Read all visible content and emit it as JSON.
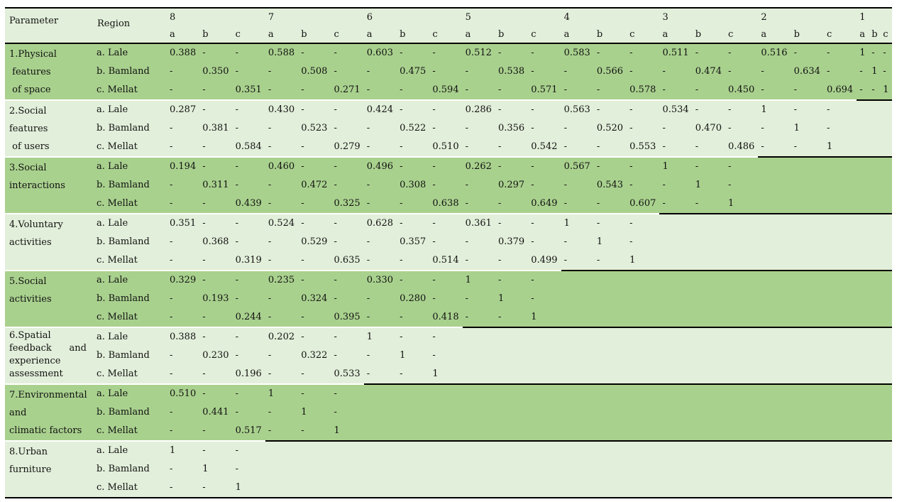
{
  "table": {
    "header": {
      "parameter_label": "Parameter",
      "region_label": "Region",
      "column_groups": [
        {
          "number": "8",
          "sub_columns": [
            "a",
            "b",
            "c"
          ]
        },
        {
          "number": "7",
          "sub_columns": [
            "a",
            "b",
            "c"
          ]
        },
        {
          "number": "6",
          "sub_columns": [
            "a",
            "b",
            "c"
          ]
        },
        {
          "number": "5",
          "sub_columns": [
            "a",
            "b",
            "c"
          ]
        },
        {
          "number": "4",
          "sub_columns": [
            "a",
            "b",
            "c"
          ]
        },
        {
          "number": "3",
          "sub_columns": [
            "a",
            "b",
            "c"
          ]
        },
        {
          "number": "2",
          "sub_columns": [
            "a",
            "b",
            "c"
          ]
        },
        {
          "number": "1",
          "sub_columns": [
            "a",
            "b",
            "c"
          ]
        }
      ]
    },
    "colors": {
      "band_dark": "#a9d18e",
      "band_light": "#e2efda",
      "header_bg": "#e2efda",
      "empty_region": "#000000",
      "rule": "#000000",
      "group_separator": "#ffffff"
    },
    "parameter_groups": [
      {
        "parameter": "1.Physical\n features\n of space",
        "rows": [
          {
            "region": "a. Lale",
            "values": [
              "0.388",
              "-",
              "-",
              "0.588",
              "-",
              "-",
              "0.603",
              "-",
              "-",
              "0.512",
              "-",
              "-",
              "0.583",
              "-",
              "-",
              "0.511",
              "-",
              "-",
              "0.516",
              "-",
              "-",
              "1",
              "-",
              "-"
            ]
          },
          {
            "region": "b. Bamland",
            "values": [
              "-",
              "0.350",
              "-",
              "-",
              "0.508",
              "-",
              "-",
              "0.475",
              "-",
              "-",
              "0.538",
              "-",
              "-",
              "0.566",
              "-",
              "-",
              "0.474",
              "-",
              "-",
              "0.634",
              "-",
              "-",
              "1",
              "-"
            ]
          },
          {
            "region": "c. Mellat",
            "values": [
              "-",
              "-",
              "0.351",
              "-",
              "-",
              "0.271",
              "-",
              "-",
              "0.594",
              "-",
              "-",
              "0.571",
              "-",
              "-",
              "0.578",
              "-",
              "-",
              "0.450",
              "-",
              "-",
              "0.694",
              "-",
              "-",
              "1"
            ]
          }
        ]
      },
      {
        "parameter": "2.Social\nfeatures\n of users",
        "rows": [
          {
            "region": "a. Lale",
            "values": [
              "0.287",
              "-",
              "-",
              "0.430",
              "-",
              "-",
              "0.424",
              "-",
              "-",
              "0.286",
              "-",
              "-",
              "0.563",
              "-",
              "-",
              "0.534",
              "-",
              "-",
              "1",
              "-",
              "-"
            ]
          },
          {
            "region": "b. Bamland",
            "values": [
              "-",
              "0.381",
              "-",
              "-",
              "0.523",
              "-",
              "-",
              "0.522",
              "-",
              "-",
              "0.356",
              "-",
              "-",
              "0.520",
              "-",
              "-",
              "0.470",
              "-",
              "-",
              "1",
              "-"
            ]
          },
          {
            "region": "c. Mellat",
            "values": [
              "-",
              "-",
              "0.584",
              "-",
              "-",
              "0.279",
              "-",
              "-",
              "0.510",
              "-",
              "-",
              "0.542",
              "-",
              "-",
              "0.553",
              "-",
              "-",
              "0.486",
              "-",
              "-",
              "1"
            ]
          }
        ]
      },
      {
        "parameter": "3.Social\ninteractions",
        "rows": [
          {
            "region": "a. Lale",
            "values": [
              "0.194",
              "-",
              "-",
              "0.460",
              "-",
              "-",
              "0.496",
              "-",
              "-",
              "0.262",
              "-",
              "-",
              "0.567",
              "-",
              "-",
              "1",
              "-",
              "-"
            ]
          },
          {
            "region": "b. Bamland",
            "values": [
              "-",
              "0.311",
              "-",
              "-",
              "0.472",
              "-",
              "-",
              "0.308",
              "-",
              "-",
              "0.297",
              "-",
              "-",
              "0.543",
              "-",
              "-",
              "1",
              "-"
            ]
          },
          {
            "region": "c. Mellat",
            "values": [
              "-",
              "-",
              "0.439",
              "-",
              "-",
              "0.325",
              "-",
              "-",
              "0.638",
              "-",
              "-",
              "0.649",
              "-",
              "-",
              "0.607",
              "-",
              "-",
              "1"
            ]
          }
        ]
      },
      {
        "parameter": "4.Voluntary\nactivities",
        "rows": [
          {
            "region": "a. Lale",
            "values": [
              "0.351",
              "-",
              "-",
              "0.524",
              "-",
              "-",
              "0.628",
              "-",
              "-",
              "0.361",
              "-",
              "-",
              "1",
              "-",
              "-"
            ]
          },
          {
            "region": "b. Bamland",
            "values": [
              "-",
              "0.368",
              "-",
              "-",
              "0.529",
              "-",
              "-",
              "0.357",
              "-",
              "-",
              "0.379",
              "-",
              "-",
              "1",
              "-"
            ]
          },
          {
            "region": "c. Mellat",
            "values": [
              "-",
              "-",
              "0.319",
              "-",
              "-",
              "0.635",
              "-",
              "-",
              "0.514",
              "-",
              "-",
              "0.499",
              "-",
              "-",
              "1"
            ]
          }
        ]
      },
      {
        "parameter": "5.Social\nactivities",
        "rows": [
          {
            "region": "a. Lale",
            "values": [
              "0.329",
              "-",
              "-",
              "0.235",
              "-",
              "-",
              "0.330",
              "-",
              "-",
              "1",
              "-",
              "-"
            ]
          },
          {
            "region": "b. Bamland",
            "values": [
              "-",
              "0.193",
              "-",
              "-",
              "0.324",
              "-",
              "-",
              "0.280",
              "-",
              "-",
              "1",
              "-"
            ]
          },
          {
            "region": "c. Mellat",
            "values": [
              "-",
              "-",
              "0.244",
              "-",
              "-",
              "0.395",
              "-",
              "-",
              "0.418",
              "-",
              "-",
              "1"
            ]
          }
        ]
      },
      {
        "parameter": "6.Spatial\nfeedback      and\nexperience\nassessment",
        "rows": [
          {
            "region": "a. Lale",
            "values": [
              "0.388",
              "-",
              "-",
              "0.202",
              "-",
              "-",
              "1",
              "-",
              "-"
            ]
          },
          {
            "region": "b. Bamland",
            "values": [
              "-",
              "0.230",
              "-",
              "-",
              "0.322",
              "-",
              "-",
              "1",
              "-"
            ]
          },
          {
            "region": "c. Mellat",
            "values": [
              "-",
              "-",
              "0.196",
              "-",
              "-",
              "0.533",
              "-",
              "-",
              "1"
            ]
          }
        ]
      },
      {
        "parameter": "7.Environmental\nand\nclimatic factors",
        "rows": [
          {
            "region": "a. Lale",
            "values": [
              "0.510",
              "-",
              "-",
              "1",
              "-",
              "-"
            ]
          },
          {
            "region": "b. Bamland",
            "values": [
              "-",
              "0.441",
              "-",
              "-",
              "1",
              "-"
            ]
          },
          {
            "region": "c. Mellat",
            "values": [
              "-",
              "-",
              "0.517",
              "-",
              "-",
              "1"
            ]
          }
        ]
      },
      {
        "parameter": "8.Urban\nfurniture",
        "rows": [
          {
            "region": "a. Lale",
            "values": [
              "1",
              "-",
              "-"
            ]
          },
          {
            "region": "b. Bamland",
            "values": [
              "-",
              "1",
              "-"
            ]
          },
          {
            "region": "c. Mellat",
            "values": [
              "-",
              "-",
              "1"
            ]
          }
        ]
      }
    ]
  }
}
